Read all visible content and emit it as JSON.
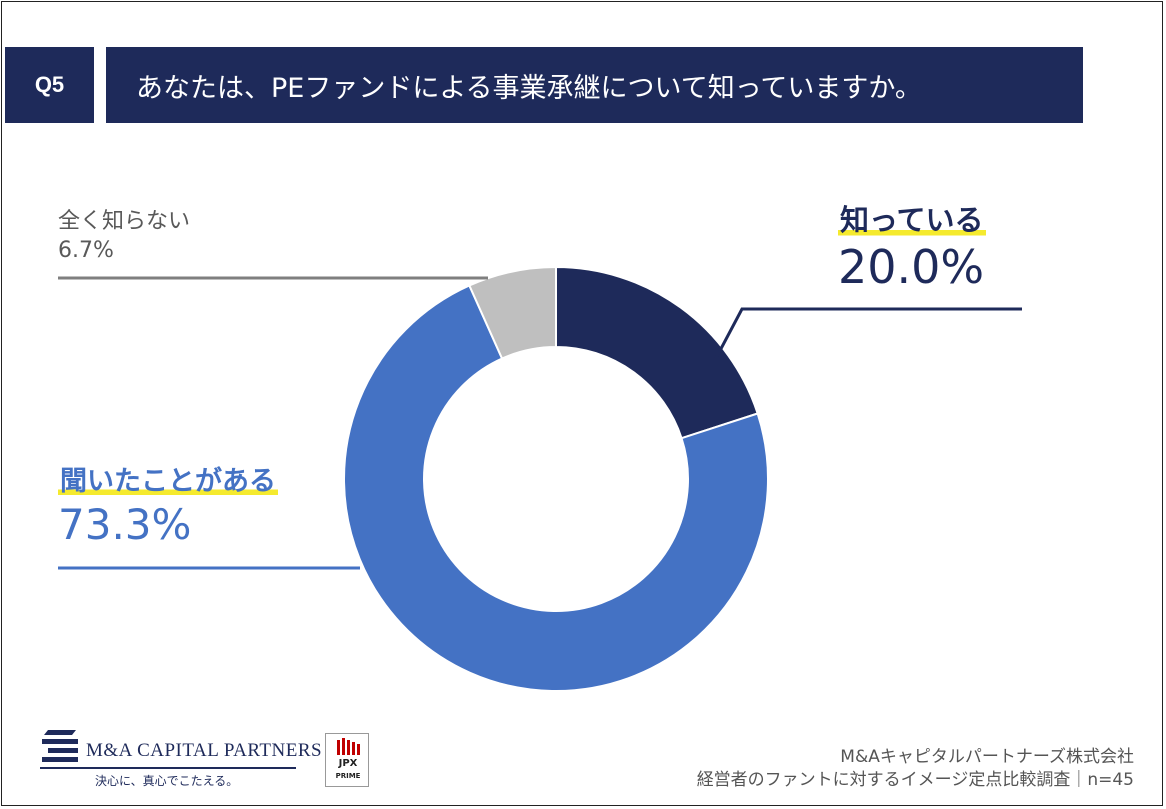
{
  "question": {
    "number": "Q5",
    "text": "あなたは、PEファンドによる事業承継について知っていますか。"
  },
  "chart_data": {
    "type": "pie",
    "donut": true,
    "slices": [
      {
        "label": "知っている",
        "value": 20.0,
        "display": "20.0%",
        "color": "#1e2a5a"
      },
      {
        "label": "聞いたことがある",
        "value": 73.3,
        "display": "73.3%",
        "color": "#4472c4"
      },
      {
        "label": "全く知らない",
        "value": 6.7,
        "display": "6.7%",
        "color": "#bfbfbf"
      }
    ]
  },
  "logo": {
    "name": "M&A CAPITAL PARTNERS",
    "tagline": "決心に、真心でこたえる。",
    "jpx_top": "JPX",
    "jpx_bottom": "PRIME"
  },
  "footer": {
    "company": "M&Aキャピタルパートナーズ株式会社",
    "survey": "経営者のファントに対するイメージ定点比較調査｜n=45"
  }
}
